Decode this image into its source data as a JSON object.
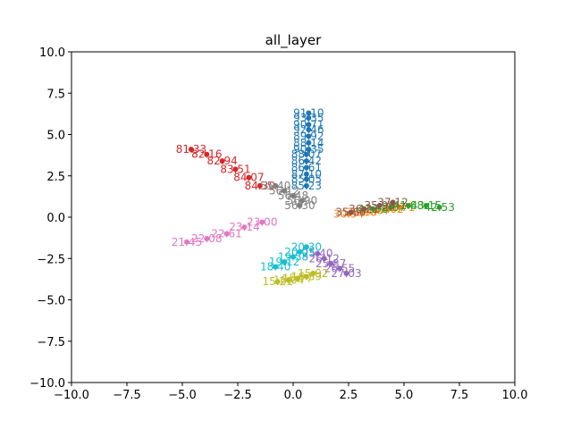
{
  "chart_data": {
    "type": "scatter",
    "title": "all_layer",
    "xlabel": "",
    "ylabel": "",
    "xlim": [
      -10,
      10
    ],
    "ylim": [
      -10,
      10
    ],
    "grid": false,
    "x_ticks": [
      -10,
      -7.5,
      -5,
      -2.5,
      0,
      2.5,
      5,
      7.5,
      10
    ],
    "y_ticks": [
      -10,
      -7.5,
      -5,
      -2.5,
      0,
      2.5,
      5,
      7.5,
      10
    ],
    "x_tick_labels": [
      "−10.0",
      "−7.5",
      "−5.0",
      "−2.5",
      "0.0",
      "2.5",
      "5.0",
      "7.5",
      "10.0"
    ],
    "y_tick_labels": [
      "−10.0",
      "−7.5",
      "−5.0",
      "−2.5",
      "0.0",
      "2.5",
      "5.0",
      "7.5",
      "10.0"
    ],
    "series": [
      {
        "color": "#1f77b4",
        "points": [
          {
            "x": 0.7,
            "y": 6.3,
            "label": "91.10"
          },
          {
            "x": 0.7,
            "y": 6.0,
            "label": "93.35"
          },
          {
            "x": 0.7,
            "y": 5.6,
            "label": "90.71"
          },
          {
            "x": 0.7,
            "y": 5.3,
            "label": "92.46"
          },
          {
            "x": 0.7,
            "y": 4.9,
            "label": "89.92"
          },
          {
            "x": 0.7,
            "y": 4.5,
            "label": "88.14"
          },
          {
            "x": 0.7,
            "y": 4.1,
            "label": "90.35"
          },
          {
            "x": 0.6,
            "y": 3.8,
            "label": "88.07"
          },
          {
            "x": 0.6,
            "y": 3.4,
            "label": "86.42"
          },
          {
            "x": 0.6,
            "y": 3.0,
            "label": "86.61"
          },
          {
            "x": 0.6,
            "y": 2.6,
            "label": "87.10"
          },
          {
            "x": 0.6,
            "y": 2.3,
            "label": "85.05"
          },
          {
            "x": 0.6,
            "y": 1.9,
            "label": "85.23"
          }
        ]
      },
      {
        "color": "#ff7f0e",
        "points": [
          {
            "x": 2.5,
            "y": 0.2,
            "label": "30.94"
          },
          {
            "x": 3.1,
            "y": 0.3,
            "label": "32.18"
          },
          {
            "x": 3.7,
            "y": 0.4,
            "label": "31.57"
          },
          {
            "x": 4.3,
            "y": 0.5,
            "label": "33.02"
          },
          {
            "x": 4.8,
            "y": 0.6,
            "label": "32.71"
          }
        ]
      },
      {
        "color": "#2ca02c",
        "points": [
          {
            "x": 3.6,
            "y": 0.5,
            "label": "41.36"
          },
          {
            "x": 4.4,
            "y": 0.6,
            "label": "42.07"
          },
          {
            "x": 5.2,
            "y": 0.7,
            "label": "41.88"
          },
          {
            "x": 6.0,
            "y": 0.7,
            "label": "43.15"
          },
          {
            "x": 6.6,
            "y": 0.6,
            "label": "42.53"
          }
        ]
      },
      {
        "color": "#d62728",
        "points": [
          {
            "x": -4.6,
            "y": 4.1,
            "label": "81.33"
          },
          {
            "x": -3.9,
            "y": 3.8,
            "label": "82.16"
          },
          {
            "x": -3.2,
            "y": 3.4,
            "label": "82.94"
          },
          {
            "x": -2.6,
            "y": 2.9,
            "label": "83.51"
          },
          {
            "x": -2.0,
            "y": 2.4,
            "label": "84.07"
          },
          {
            "x": -1.5,
            "y": 1.9,
            "label": "84.30"
          }
        ]
      },
      {
        "color": "#9467bd",
        "points": [
          {
            "x": 1.1,
            "y": -2.2,
            "label": "25.40"
          },
          {
            "x": 1.4,
            "y": -2.5,
            "label": "26.12"
          },
          {
            "x": 1.7,
            "y": -2.8,
            "label": "25.87"
          },
          {
            "x": 2.1,
            "y": -3.1,
            "label": "26.55"
          },
          {
            "x": 2.4,
            "y": -3.4,
            "label": "27.03"
          }
        ]
      },
      {
        "color": "#8c564b",
        "points": [
          {
            "x": 2.6,
            "y": 0.3,
            "label": "35.60"
          },
          {
            "x": 3.2,
            "y": 0.5,
            "label": "36.21"
          },
          {
            "x": 3.9,
            "y": 0.7,
            "label": "35.98"
          },
          {
            "x": 4.5,
            "y": 0.9,
            "label": "37.12"
          }
        ]
      },
      {
        "color": "#e377c2",
        "points": [
          {
            "x": -4.8,
            "y": -1.5,
            "label": "21.45"
          },
          {
            "x": -3.9,
            "y": -1.3,
            "label": "22.08"
          },
          {
            "x": -3.0,
            "y": -1.0,
            "label": "22.61"
          },
          {
            "x": -2.2,
            "y": -0.6,
            "label": "23.14"
          },
          {
            "x": -1.4,
            "y": -0.3,
            "label": "23.00"
          }
        ]
      },
      {
        "color": "#7f7f7f",
        "points": [
          {
            "x": -0.8,
            "y": 1.9,
            "label": "55.40"
          },
          {
            "x": -0.4,
            "y": 1.6,
            "label": "56.12"
          },
          {
            "x": 0.0,
            "y": 1.3,
            "label": "56.48"
          },
          {
            "x": 0.4,
            "y": 1.0,
            "label": "56.90"
          },
          {
            "x": 0.3,
            "y": 0.7,
            "label": "56.30"
          }
        ]
      },
      {
        "color": "#bcbd22",
        "points": [
          {
            "x": -0.7,
            "y": -3.9,
            "label": "15.21"
          },
          {
            "x": -0.2,
            "y": -3.8,
            "label": "16.04"
          },
          {
            "x": 0.2,
            "y": -3.7,
            "label": "15.77"
          },
          {
            "x": 0.6,
            "y": -3.6,
            "label": "16.39"
          },
          {
            "x": 0.9,
            "y": -3.4,
            "label": "15.92"
          }
        ]
      },
      {
        "color": "#17becf",
        "points": [
          {
            "x": -0.8,
            "y": -3.0,
            "label": "18.40"
          },
          {
            "x": -0.4,
            "y": -2.7,
            "label": "19.12"
          },
          {
            "x": 0.0,
            "y": -2.4,
            "label": "19.58"
          },
          {
            "x": 0.3,
            "y": -2.1,
            "label": "20.05"
          },
          {
            "x": 0.6,
            "y": -1.8,
            "label": "20.30"
          }
        ]
      }
    ]
  }
}
